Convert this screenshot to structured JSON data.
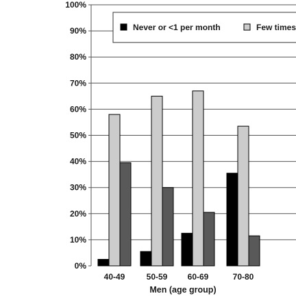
{
  "chart_data": {
    "type": "bar",
    "categories": [
      "40-49",
      "50-59",
      "60-69",
      "70-80"
    ],
    "series": [
      {
        "name": "Never or <1 per month",
        "values": [
          2.5,
          5.5,
          12.5,
          35.5
        ],
        "color": "#000000"
      },
      {
        "name": "Few times",
        "values": [
          58,
          65,
          67,
          53.5
        ],
        "color": "#cccccc"
      },
      {
        "name": "",
        "values": [
          39.5,
          30,
          20.5,
          11.5
        ],
        "color": "#595959"
      }
    ],
    "yticks": [
      "0%",
      "10%",
      "20%",
      "30%",
      "40%",
      "50%",
      "60%",
      "70%",
      "80%",
      "90%",
      "100%"
    ],
    "ylim": [
      0,
      100
    ],
    "xlabel": "Men (age group)",
    "ylabel": "",
    "title": "",
    "grid": true,
    "legend_position": "top"
  }
}
